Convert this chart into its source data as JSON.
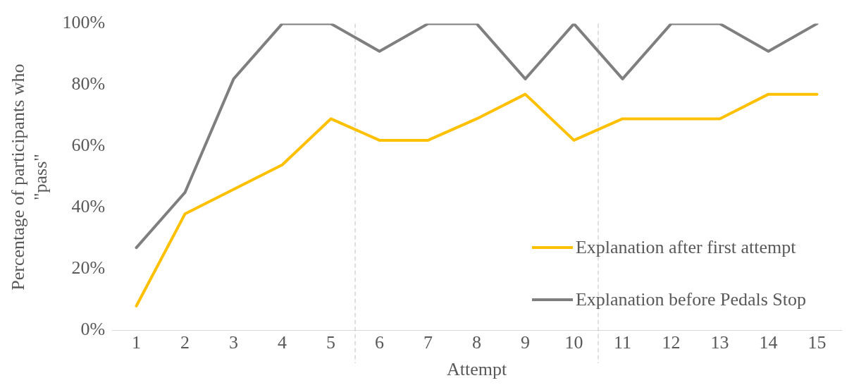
{
  "chart_data": {
    "type": "line",
    "xlabel": "Attempt",
    "ylabel": "Percentage of participants who \"pass\"",
    "x": [
      1,
      2,
      3,
      4,
      5,
      6,
      7,
      8,
      9,
      10,
      11,
      12,
      13,
      14,
      15
    ],
    "xlim": [
      0.5,
      15.5
    ],
    "xticks": [
      1,
      2,
      3,
      4,
      5,
      6,
      7,
      8,
      9,
      10,
      11,
      12,
      13,
      14,
      15
    ],
    "ylim": [
      0,
      100
    ],
    "yticks": [
      {
        "value": 0,
        "label": "0%"
      },
      {
        "value": 20,
        "label": "20%"
      },
      {
        "value": 40,
        "label": "40%"
      },
      {
        "value": 60,
        "label": "60%"
      },
      {
        "value": 80,
        "label": "80%"
      },
      {
        "value": 100,
        "label": "100%"
      }
    ],
    "series": [
      {
        "name": "Explanation after first attempt",
        "color": "#ffc000",
        "values": [
          8,
          38,
          46,
          54,
          69,
          62,
          62,
          69,
          77,
          62,
          69,
          69,
          69,
          77,
          77
        ]
      },
      {
        "name": "Explanation before Pedals Stop",
        "color": "#7f7f7f",
        "values": [
          27,
          45,
          82,
          100,
          100,
          91,
          100,
          100,
          82,
          100,
          82,
          100,
          100,
          91,
          100
        ]
      }
    ],
    "ref_lines": [
      {
        "axis": "x",
        "value": 5.5,
        "color": "#bfbfbf",
        "line_style": "dashed"
      },
      {
        "axis": "x",
        "value": 10.5,
        "color": "#bfbfbf",
        "line_style": "dashed"
      }
    ],
    "legend": "bottom right",
    "grid": false,
    "marker": "none",
    "line_style": "solid"
  }
}
